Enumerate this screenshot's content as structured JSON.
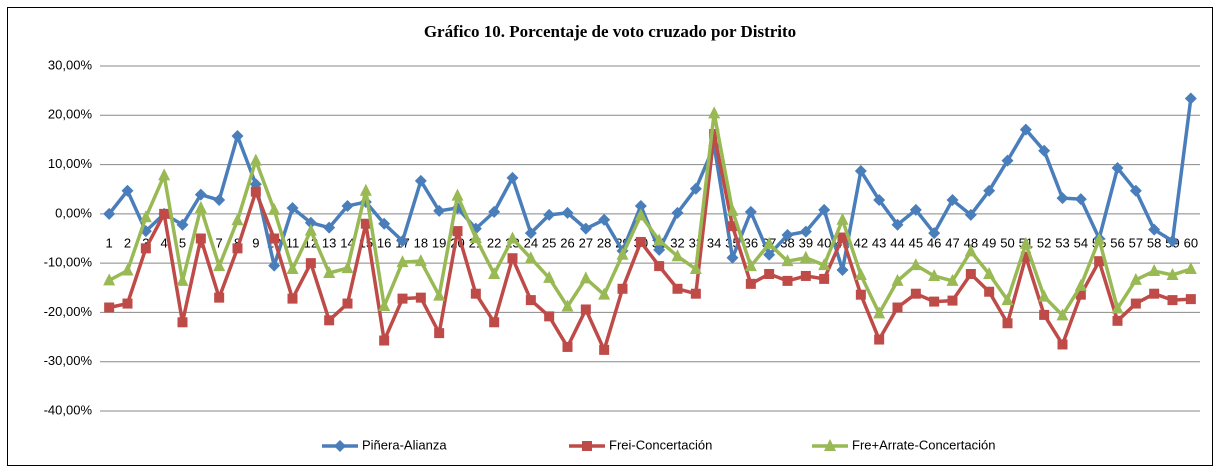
{
  "chart_data": {
    "type": "line",
    "title": "Gráfico 10. Porcentaje de voto cruzado por Distrito",
    "categories": [
      "1",
      "2",
      "3",
      "4",
      "5",
      "6",
      "7",
      "8",
      "9",
      "10",
      "11",
      "12",
      "13",
      "14",
      "15",
      "16",
      "17",
      "18",
      "19",
      "20",
      "21",
      "22",
      "23",
      "24",
      "25",
      "26",
      "27",
      "28",
      "29",
      "30",
      "31",
      "32",
      "33",
      "34",
      "35",
      "36",
      "37",
      "38",
      "39",
      "40",
      "41",
      "42",
      "43",
      "44",
      "45",
      "46",
      "47",
      "48",
      "49",
      "50",
      "51",
      "52",
      "53",
      "54",
      "55",
      "56",
      "57",
      "58",
      "59",
      "60"
    ],
    "series": [
      {
        "name": "Piñera-Alianza",
        "color": "#4a7ebb",
        "marker": "diamond",
        "values": [
          0,
          4.7,
          -3.5,
          0,
          -2.2,
          3.9,
          2.8,
          15.8,
          6,
          -10.5,
          1.2,
          -1.8,
          -2.8,
          1.6,
          2.4,
          -2,
          -5.5,
          6.7,
          0.6,
          1.2,
          -3,
          0.4,
          7.3,
          -3.9,
          -0.2,
          0.2,
          -3,
          -1.2,
          -7.5,
          1.6,
          -7.3,
          0.2,
          5.1,
          13.8,
          -8.9,
          0.4,
          -8.3,
          -4.3,
          -3.6,
          0.8,
          -11.4,
          8.7,
          2.8,
          -2.2,
          0.8,
          -3.9,
          2.8,
          -0.2,
          4.7,
          10.8,
          17.1,
          12.8,
          3.2,
          3,
          -5,
          9.3,
          4.7,
          -3.2,
          -5.5,
          23.4
        ]
      },
      {
        "name": "Frei-Concertación",
        "color": "#be4b48",
        "marker": "square",
        "values": [
          -19,
          -18.2,
          -7,
          0,
          -22,
          -5,
          -17,
          -7,
          4.5,
          -5,
          -17.2,
          -10,
          -21.6,
          -18.2,
          -2,
          -25.7,
          -17.2,
          -17,
          -24.2,
          -3.5,
          -16.2,
          -22,
          -9,
          -17.5,
          -20.8,
          -27,
          -19.4,
          -27.6,
          -15.2,
          -5.7,
          -10.6,
          -15.2,
          -16.2,
          16.2,
          -2.5,
          -14.2,
          -12.2,
          -13.6,
          -12.6,
          -13.2,
          -4.8,
          -16.4,
          -25.5,
          -19,
          -16.2,
          -17.8,
          -17.6,
          -12.2,
          -15.8,
          -22.2,
          -8.7,
          -20.5,
          -26.5,
          -16.4,
          -9.6,
          -21.7,
          -18.2,
          -16.2,
          -17.5,
          -17.3
        ]
      },
      {
        "name": "Fre+Arrate-Concertación",
        "color": "#98b954",
        "marker": "triangle",
        "values": [
          -13.5,
          -11.5,
          -0.7,
          7.8,
          -13.6,
          1.2,
          -10.6,
          -1.3,
          10.8,
          0.8,
          -11.2,
          -3.4,
          -12,
          -11,
          4.7,
          -18.7,
          -9.8,
          -9.6,
          -16.6,
          3.7,
          -4.9,
          -12.2,
          -5,
          -9,
          -13,
          -18.8,
          -13.1,
          -16.4,
          -8.3,
          -0.3,
          -5.4,
          -8.6,
          -11.2,
          20.4,
          0.6,
          -10.6,
          -6.1,
          -9.6,
          -8.9,
          -10.4,
          -1.2,
          -12.4,
          -20.2,
          -13.6,
          -10.4,
          -12.6,
          -13.6,
          -7.6,
          -12.2,
          -17.5,
          -6.1,
          -16.8,
          -20.6,
          -14.6,
          -5.2,
          -19.2,
          -13.4,
          -11.6,
          -12.4,
          -11.2
        ]
      }
    ],
    "ylim": [
      -40,
      30
    ],
    "yticks": [
      {
        "value": -40,
        "label": "-40,00%"
      },
      {
        "value": -30,
        "label": "-30,00%"
      },
      {
        "value": -20,
        "label": "-20,00%"
      },
      {
        "value": -10,
        "label": "-10,00%"
      },
      {
        "value": 0,
        "label": "0,00%"
      },
      {
        "value": 10,
        "label": "10,00%"
      },
      {
        "value": 20,
        "label": "20,00%"
      },
      {
        "value": 30,
        "label": "30,00%"
      }
    ],
    "grid": true,
    "legend": "bottom"
  }
}
